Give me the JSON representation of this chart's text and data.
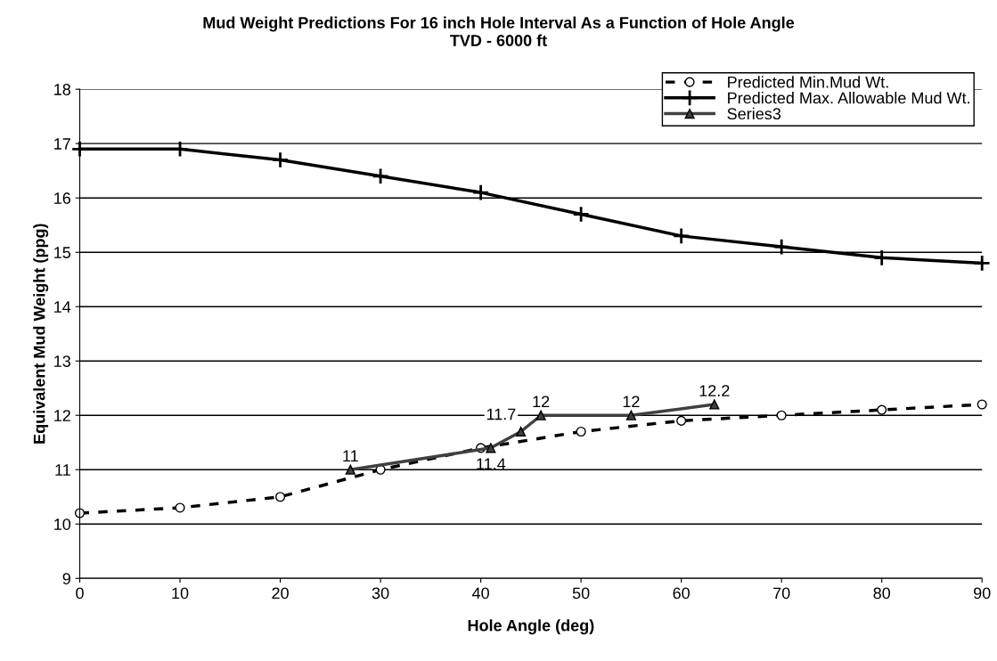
{
  "chart_data": {
    "type": "line",
    "title": "Mud Weight Predictions For 16 inch Hole Interval As a Function of Hole Angle",
    "subtitle": "TVD - 6000 ft",
    "xlabel": "Hole Angle (deg)",
    "ylabel": "Equivalent Mud Weight (ppg)",
    "xlim": [
      0,
      90
    ],
    "xticks": [
      0,
      10,
      20,
      30,
      40,
      50,
      60,
      70,
      80,
      90
    ],
    "ylim": [
      9,
      18
    ],
    "yticks": [
      9,
      10,
      11,
      12,
      13,
      14,
      15,
      16,
      17,
      18
    ],
    "grid": "y",
    "legend": "top right",
    "series": [
      {
        "name": "Predicted Min.Mud Wt.",
        "color": "#000000",
        "marker": "circle",
        "line_style": "dashed",
        "x": [
          0,
          10,
          20,
          30,
          40,
          50,
          60,
          70,
          80,
          90
        ],
        "values": [
          10.2,
          10.3,
          10.5,
          11.0,
          11.4,
          11.7,
          11.9,
          12.0,
          12.1,
          12.2
        ]
      },
      {
        "name": "Predicted Max. Allowable Mud Wt.",
        "color": "#000000",
        "marker": "cross",
        "line_style": "solid",
        "x": [
          0,
          10,
          20,
          30,
          40,
          50,
          60,
          70,
          80,
          90
        ],
        "values": [
          16.9,
          16.9,
          16.7,
          16.4,
          16.1,
          15.7,
          15.3,
          15.1,
          14.9,
          14.8
        ]
      },
      {
        "name": "Series3",
        "color": "#404040",
        "marker": "triangle",
        "line_style": "solid",
        "data_labels": true,
        "x": [
          27,
          41,
          44,
          46,
          55,
          63.3
        ],
        "values": [
          11,
          11.4,
          11.7,
          12,
          12,
          12.2
        ]
      }
    ]
  }
}
